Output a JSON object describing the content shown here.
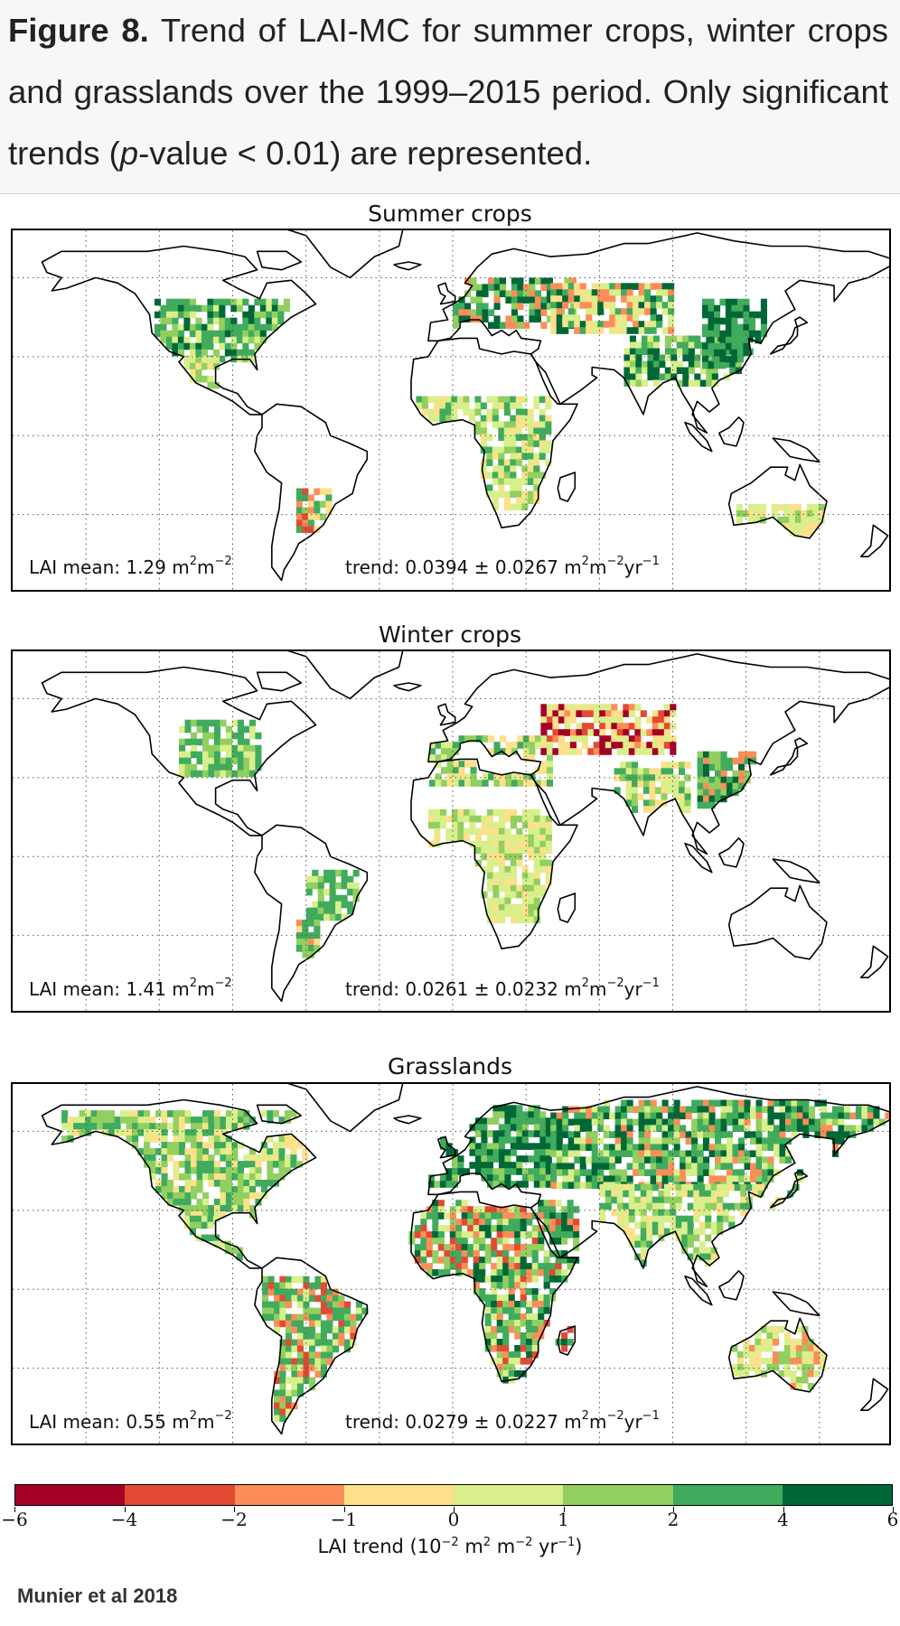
{
  "caption": {
    "label": "Figure 8.",
    "text_1": " Trend of LAI-MC for summer crops, winter crops and grasslands over the 1999–2015 period. Only significant trends (",
    "p_symbol": "p",
    "text_2": "-value < 0.01) are represented."
  },
  "colors": {
    "ocean": "#ffffff",
    "land_nodata": "#ffffff",
    "coastline": "#000000",
    "grid": "#555555"
  },
  "panels": [
    {
      "title": "Summer crops",
      "lai_mean_label": "LAI mean: 1.29 m",
      "lai_mean_unit_tail": "m",
      "trend_label": "trend: 0.0394 ± 0.0267 m",
      "trend_unit_mid": "m",
      "trend_unit_tail": "yr",
      "coverage": "summer-crops"
    },
    {
      "title": "Winter crops",
      "lai_mean_label": "LAI mean: 1.41 m",
      "lai_mean_unit_tail": "m",
      "trend_label": "trend: 0.0261 ± 0.0232 m",
      "trend_unit_mid": "m",
      "trend_unit_tail": "yr",
      "coverage": "winter-crops"
    },
    {
      "title": "Grasslands",
      "lai_mean_label": "LAI mean: 0.55 m",
      "lai_mean_unit_tail": "m",
      "trend_label": "trend: 0.0279 ± 0.0227 m",
      "trend_unit_mid": "m",
      "trend_unit_tail": "yr",
      "coverage": "grasslands"
    }
  ],
  "colorbar": {
    "title_prefix": "LAI trend (10",
    "title_exp1": "−2",
    "title_mid1": " m",
    "title_exp2": "2",
    "title_mid2": " m",
    "title_exp3": "−2",
    "title_mid3": " yr",
    "title_exp4": "−1",
    "title_suffix": ")",
    "ticks": [
      "−6",
      "−4",
      "−2",
      "−1",
      "0",
      "1",
      "2",
      "4",
      "6"
    ],
    "colors": [
      "#a50026",
      "#e34a33",
      "#fc8d59",
      "#fee08b",
      "#d9ef8b",
      "#91cf60",
      "#41ab5d",
      "#006837"
    ]
  },
  "credit": "Munier et al 2018"
}
